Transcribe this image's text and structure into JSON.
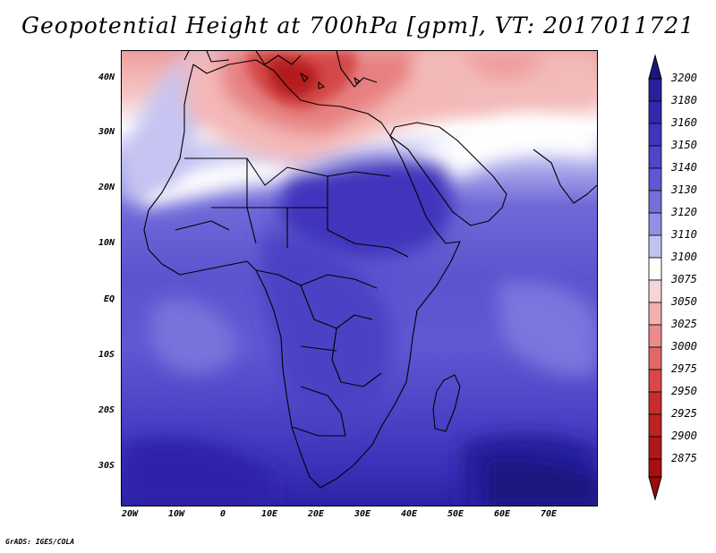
{
  "title": "Geopotential Height at 700hPa [gpm], VT: 2017011721",
  "axes": {
    "lat_labels": [
      "40N",
      "30N",
      "20N",
      "10N",
      "EQ",
      "10S",
      "20S",
      "30S"
    ],
    "lat_values": [
      40,
      30,
      20,
      10,
      0,
      -10,
      -20,
      -30
    ],
    "lon_labels": [
      "20W",
      "10W",
      "0",
      "10E",
      "20E",
      "30E",
      "40E",
      "50E",
      "60E",
      "70E"
    ],
    "lon_values": [
      -20,
      -10,
      0,
      10,
      20,
      30,
      40,
      50,
      60,
      70
    ]
  },
  "colorbar": {
    "labels": [
      "3200",
      "3180",
      "3160",
      "3150",
      "3140",
      "3130",
      "3120",
      "3110",
      "3100",
      "3075",
      "3050",
      "3025",
      "3000",
      "2975",
      "2950",
      "2925",
      "2900",
      "2875"
    ],
    "colors": [
      "#1c1480",
      "#28209a",
      "#3228ae",
      "#3f36bc",
      "#4e46c8",
      "#5f58d2",
      "#7470da",
      "#9390e4",
      "#c2c2f2",
      "#ffffff",
      "#f8d4d4",
      "#f2b0b0",
      "#ea8c8c",
      "#e26868",
      "#d84848",
      "#c82c2c",
      "#b01818",
      "#a80f0f"
    ]
  },
  "credit": "GrADS: IGES/COLA"
}
